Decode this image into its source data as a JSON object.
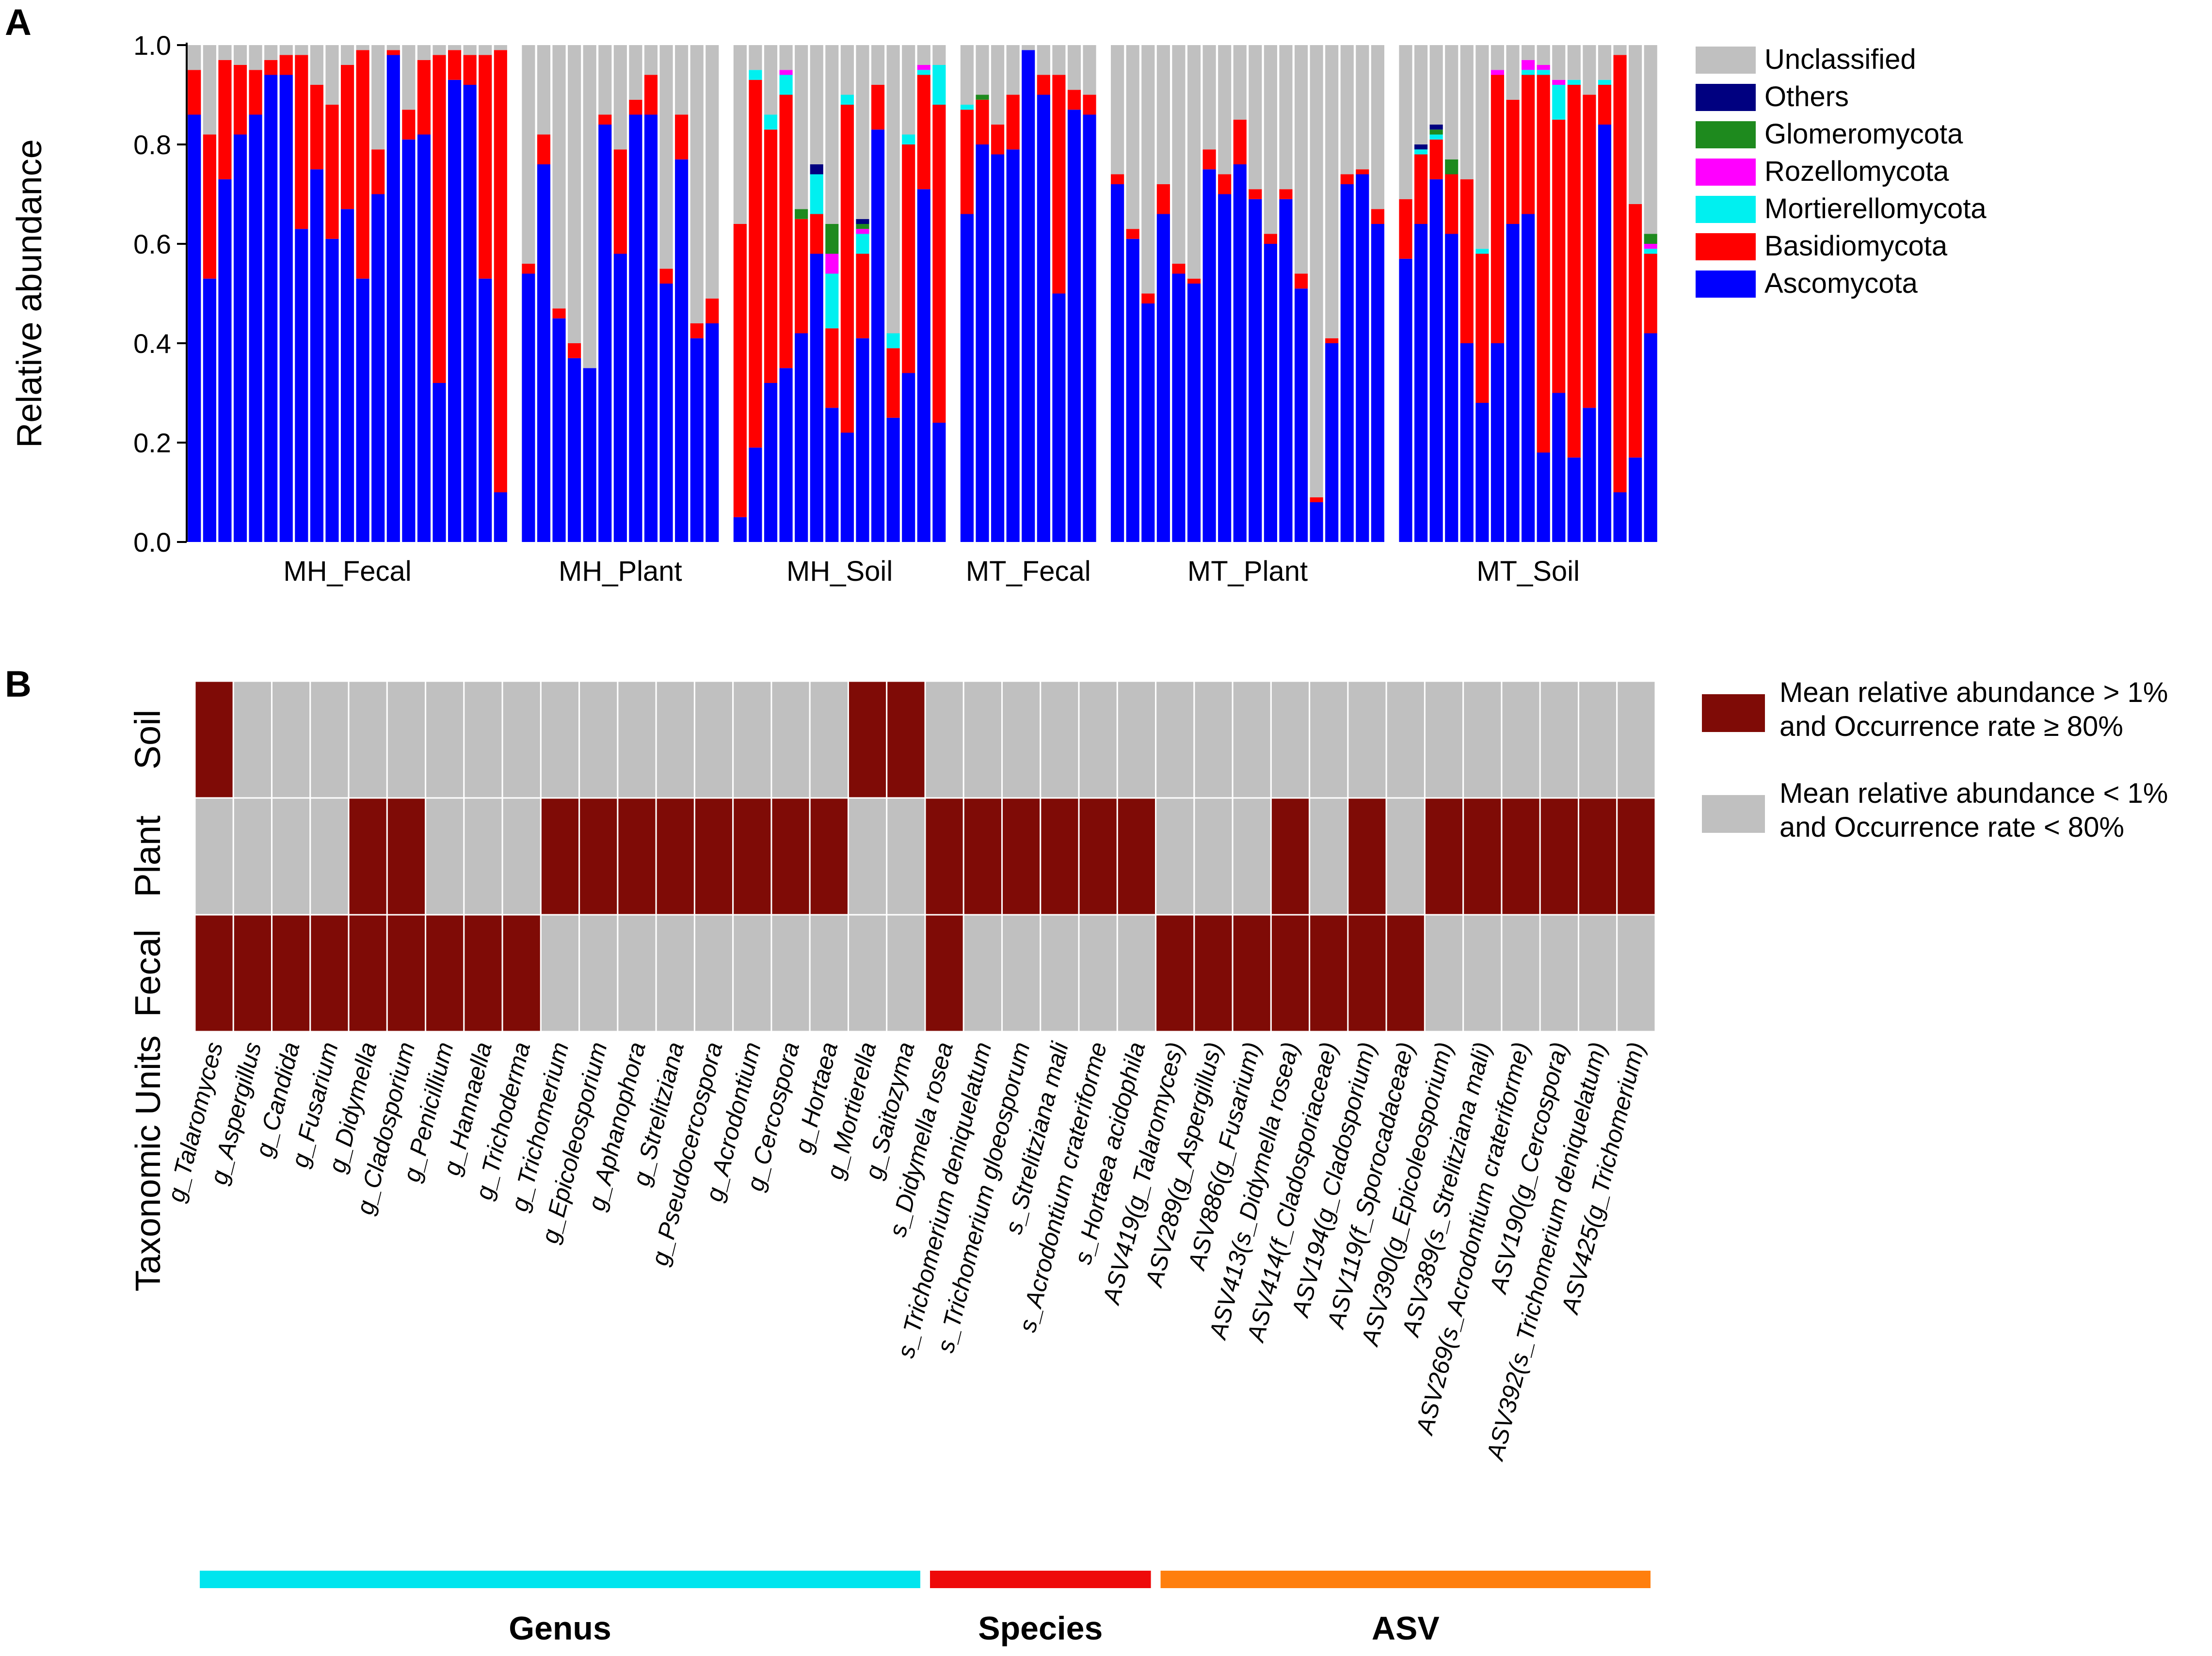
{
  "colors": {
    "Unclassified": "#c0c0c0",
    "Others": "#000080",
    "Glomeromycota": "#1e8a1e",
    "Rozellomycota": "#ff00ff",
    "Mortierellomycota": "#00f0f0",
    "Basidiomycota": "#ff0000",
    "Ascomycota": "#0000ff",
    "present": "#7f0b06",
    "absent": "#c0c0c0",
    "Genus": "#00e5ee",
    "Species": "#ee0a0a",
    "ASV": "#ff7f0e"
  },
  "chart_data": [
    {
      "panel": "A",
      "type": "bar",
      "stacked": true,
      "ylabel": "Relative abundance",
      "ylim": [
        0,
        1.0
      ],
      "yticks": [
        "0.0",
        "0.2",
        "0.4",
        "0.6",
        "0.8",
        "1.0"
      ],
      "legend_position": "right",
      "legend": [
        "Unclassified",
        "Others",
        "Glomeromycota",
        "Rozellomycota",
        "Mortierellomycota",
        "Basidiomycota",
        "Ascomycota"
      ],
      "groups": [
        {
          "name": "MH_Fecal",
          "samples": [
            {
              "Ascomycota": 0.86,
              "Basidiomycota": 0.09
            },
            {
              "Ascomycota": 0.53,
              "Basidiomycota": 0.29
            },
            {
              "Ascomycota": 0.73,
              "Basidiomycota": 0.24
            },
            {
              "Ascomycota": 0.82,
              "Basidiomycota": 0.14
            },
            {
              "Ascomycota": 0.86,
              "Basidiomycota": 0.09
            },
            {
              "Ascomycota": 0.94,
              "Basidiomycota": 0.03
            },
            {
              "Ascomycota": 0.94,
              "Basidiomycota": 0.04
            },
            {
              "Ascomycota": 0.63,
              "Basidiomycota": 0.35
            },
            {
              "Ascomycota": 0.75,
              "Basidiomycota": 0.17
            },
            {
              "Ascomycota": 0.61,
              "Basidiomycota": 0.27
            },
            {
              "Ascomycota": 0.67,
              "Basidiomycota": 0.29
            },
            {
              "Ascomycota": 0.53,
              "Basidiomycota": 0.46
            },
            {
              "Ascomycota": 0.7,
              "Basidiomycota": 0.09
            },
            {
              "Ascomycota": 0.98,
              "Basidiomycota": 0.01
            },
            {
              "Ascomycota": 0.81,
              "Basidiomycota": 0.06
            },
            {
              "Ascomycota": 0.82,
              "Basidiomycota": 0.15
            },
            {
              "Ascomycota": 0.32,
              "Basidiomycota": 0.66
            },
            {
              "Ascomycota": 0.93,
              "Basidiomycota": 0.06
            },
            {
              "Ascomycota": 0.92,
              "Basidiomycota": 0.06
            },
            {
              "Ascomycota": 0.53,
              "Basidiomycota": 0.45
            },
            {
              "Ascomycota": 0.1,
              "Basidiomycota": 0.89
            }
          ]
        },
        {
          "name": "MH_Plant",
          "samples": [
            {
              "Ascomycota": 0.54,
              "Basidiomycota": 0.02
            },
            {
              "Ascomycota": 0.76,
              "Basidiomycota": 0.06
            },
            {
              "Ascomycota": 0.45,
              "Basidiomycota": 0.02
            },
            {
              "Ascomycota": 0.37,
              "Basidiomycota": 0.03
            },
            {
              "Ascomycota": 0.35,
              "Basidiomycota": 0.0
            },
            {
              "Ascomycota": 0.84,
              "Basidiomycota": 0.02
            },
            {
              "Ascomycota": 0.58,
              "Basidiomycota": 0.21
            },
            {
              "Ascomycota": 0.86,
              "Basidiomycota": 0.03
            },
            {
              "Ascomycota": 0.86,
              "Basidiomycota": 0.08
            },
            {
              "Ascomycota": 0.52,
              "Basidiomycota": 0.03
            },
            {
              "Ascomycota": 0.77,
              "Basidiomycota": 0.09
            },
            {
              "Ascomycota": 0.41,
              "Basidiomycota": 0.03
            },
            {
              "Ascomycota": 0.44,
              "Basidiomycota": 0.05
            }
          ]
        },
        {
          "name": "MH_Soil",
          "samples": [
            {
              "Ascomycota": 0.05,
              "Basidiomycota": 0.59
            },
            {
              "Ascomycota": 0.19,
              "Basidiomycota": 0.74,
              "Mortierellomycota": 0.02
            },
            {
              "Ascomycota": 0.32,
              "Basidiomycota": 0.51,
              "Mortierellomycota": 0.03
            },
            {
              "Ascomycota": 0.35,
              "Basidiomycota": 0.55,
              "Mortierellomycota": 0.04,
              "Rozellomycota": 0.01
            },
            {
              "Ascomycota": 0.42,
              "Basidiomycota": 0.23,
              "Glomeromycota": 0.02
            },
            {
              "Ascomycota": 0.58,
              "Basidiomycota": 0.08,
              "Mortierellomycota": 0.08,
              "Others": 0.02
            },
            {
              "Ascomycota": 0.27,
              "Basidiomycota": 0.16,
              "Mortierellomycota": 0.11,
              "Rozellomycota": 0.04,
              "Glomeromycota": 0.06
            },
            {
              "Ascomycota": 0.22,
              "Basidiomycota": 0.66,
              "Mortierellomycota": 0.02
            },
            {
              "Ascomycota": 0.41,
              "Basidiomycota": 0.17,
              "Mortierellomycota": 0.04,
              "Rozellomycota": 0.01,
              "Glomeromycota": 0.01,
              "Others": 0.01
            },
            {
              "Ascomycota": 0.83,
              "Basidiomycota": 0.09
            },
            {
              "Ascomycota": 0.25,
              "Basidiomycota": 0.14,
              "Mortierellomycota": 0.03
            },
            {
              "Ascomycota": 0.34,
              "Basidiomycota": 0.46,
              "Mortierellomycota": 0.02
            },
            {
              "Ascomycota": 0.71,
              "Basidiomycota": 0.23,
              "Mortierellomycota": 0.01,
              "Rozellomycota": 0.01
            },
            {
              "Ascomycota": 0.24,
              "Basidiomycota": 0.64,
              "Mortierellomycota": 0.08
            }
          ]
        },
        {
          "name": "MT_Fecal",
          "samples": [
            {
              "Ascomycota": 0.66,
              "Basidiomycota": 0.21,
              "Mortierellomycota": 0.01
            },
            {
              "Ascomycota": 0.8,
              "Basidiomycota": 0.09,
              "Glomeromycota": 0.01
            },
            {
              "Ascomycota": 0.78,
              "Basidiomycota": 0.06
            },
            {
              "Ascomycota": 0.79,
              "Basidiomycota": 0.11
            },
            {
              "Ascomycota": 0.99,
              "Basidiomycota": 0.0
            },
            {
              "Ascomycota": 0.9,
              "Basidiomycota": 0.04
            },
            {
              "Ascomycota": 0.5,
              "Basidiomycota": 0.44
            },
            {
              "Ascomycota": 0.87,
              "Basidiomycota": 0.04
            },
            {
              "Ascomycota": 0.86,
              "Basidiomycota": 0.04
            }
          ]
        },
        {
          "name": "MT_Plant",
          "samples": [
            {
              "Ascomycota": 0.72,
              "Basidiomycota": 0.02
            },
            {
              "Ascomycota": 0.61,
              "Basidiomycota": 0.02
            },
            {
              "Ascomycota": 0.48,
              "Basidiomycota": 0.02
            },
            {
              "Ascomycota": 0.66,
              "Basidiomycota": 0.06
            },
            {
              "Ascomycota": 0.54,
              "Basidiomycota": 0.02
            },
            {
              "Ascomycota": 0.52,
              "Basidiomycota": 0.01
            },
            {
              "Ascomycota": 0.75,
              "Basidiomycota": 0.04
            },
            {
              "Ascomycota": 0.7,
              "Basidiomycota": 0.04
            },
            {
              "Ascomycota": 0.76,
              "Basidiomycota": 0.09
            },
            {
              "Ascomycota": 0.69,
              "Basidiomycota": 0.02
            },
            {
              "Ascomycota": 0.6,
              "Basidiomycota": 0.02
            },
            {
              "Ascomycota": 0.69,
              "Basidiomycota": 0.02
            },
            {
              "Ascomycota": 0.51,
              "Basidiomycota": 0.03
            },
            {
              "Ascomycota": 0.08,
              "Basidiomycota": 0.01
            },
            {
              "Ascomycota": 0.4,
              "Basidiomycota": 0.01
            },
            {
              "Ascomycota": 0.72,
              "Basidiomycota": 0.02
            },
            {
              "Ascomycota": 0.74,
              "Basidiomycota": 0.01
            },
            {
              "Ascomycota": 0.64,
              "Basidiomycota": 0.03
            }
          ]
        },
        {
          "name": "MT_Soil",
          "samples": [
            {
              "Ascomycota": 0.57,
              "Basidiomycota": 0.12
            },
            {
              "Ascomycota": 0.64,
              "Basidiomycota": 0.14,
              "Mortierellomycota": 0.01,
              "Others": 0.01
            },
            {
              "Ascomycota": 0.73,
              "Basidiomycota": 0.08,
              "Mortierellomycota": 0.01,
              "Glomeromycota": 0.01,
              "Others": 0.01
            },
            {
              "Ascomycota": 0.62,
              "Basidiomycota": 0.12,
              "Glomeromycota": 0.03
            },
            {
              "Ascomycota": 0.4,
              "Basidiomycota": 0.33
            },
            {
              "Ascomycota": 0.28,
              "Basidiomycota": 0.3,
              "Mortierellomycota": 0.01
            },
            {
              "Ascomycota": 0.4,
              "Basidiomycota": 0.54,
              "Rozellomycota": 0.01
            },
            {
              "Ascomycota": 0.64,
              "Basidiomycota": 0.25
            },
            {
              "Ascomycota": 0.66,
              "Basidiomycota": 0.28,
              "Mortierellomycota": 0.01,
              "Rozellomycota": 0.02
            },
            {
              "Ascomycota": 0.18,
              "Basidiomycota": 0.76,
              "Mortierellomycota": 0.01,
              "Rozellomycota": 0.01
            },
            {
              "Ascomycota": 0.3,
              "Basidiomycota": 0.55,
              "Mortierellomycota": 0.07,
              "Rozellomycota": 0.01
            },
            {
              "Ascomycota": 0.17,
              "Basidiomycota": 0.75,
              "Mortierellomycota": 0.01
            },
            {
              "Ascomycota": 0.27,
              "Basidiomycota": 0.63
            },
            {
              "Ascomycota": 0.84,
              "Basidiomycota": 0.08,
              "Mortierellomycota": 0.01
            },
            {
              "Ascomycota": 0.1,
              "Basidiomycota": 0.88
            },
            {
              "Ascomycota": 0.17,
              "Basidiomycota": 0.51
            },
            {
              "Ascomycota": 0.42,
              "Basidiomycota": 0.16,
              "Mortierellomycota": 0.01,
              "Rozellomycota": 0.01,
              "Glomeromycota": 0.02
            }
          ]
        }
      ]
    },
    {
      "panel": "B",
      "type": "heatmap",
      "ylabel": "Taxonomic Units",
      "rows": [
        "Soil",
        "Plant",
        "Fecal"
      ],
      "columns": [
        "g_Talaromyces",
        "g_Aspergillus",
        "g_Candida",
        "g_Fusarium",
        "g_Didymella",
        "g_Cladosporium",
        "g_Penicillium",
        "g_Hannaella",
        "g_Trichoderma",
        "g_Trichomerium",
        "g_Epicoleosporium",
        "g_Aphanophora",
        "g_Strelitziana",
        "g_Pseudocercospora",
        "g_Acrodontium",
        "g_Cercospora",
        "g_Hortaea",
        "g_Mortierella",
        "g_Saitozyma",
        "s_Didymella rosea",
        "s_Trichomerium deniquelatum",
        "s_Trichomerium gloeosporum",
        "s_Strelitziana mali",
        "s_Acrodontium crateriforme",
        "s_Hortaea acidophila",
        "ASV419(g_Talaromyces)",
        "ASV289(g_Aspergillus)",
        "ASV886(g_Fusarium)",
        "ASV413(s_Didymella rosea)",
        "ASV414(f_Cladosporiaceae)",
        "ASV194(g_Cladosporium)",
        "ASV119(f_Sporocadaceae)",
        "ASV390(g_Epicoleosporium)",
        "ASV389(s_Strelitziana mali)",
        "ASV269(s_Acrodontium crateriforme)",
        "ASV190(g_Cercospora)",
        "ASV392(s_Trichomerium deniquelatum)",
        "ASV425(g_Trichomerium)"
      ],
      "values": [
        [
          1,
          0,
          0,
          0,
          0,
          0,
          0,
          0,
          0,
          0,
          0,
          0,
          0,
          0,
          0,
          0,
          0,
          1,
          1,
          0,
          0,
          0,
          0,
          0,
          0,
          0,
          0,
          0,
          0,
          0,
          0,
          0,
          0,
          0,
          0,
          0,
          0,
          0
        ],
        [
          0,
          0,
          0,
          0,
          1,
          1,
          0,
          0,
          0,
          1,
          1,
          1,
          1,
          1,
          1,
          1,
          1,
          0,
          0,
          1,
          1,
          1,
          1,
          1,
          1,
          0,
          0,
          0,
          1,
          0,
          1,
          0,
          1,
          1,
          1,
          1,
          1,
          1
        ],
        [
          1,
          1,
          1,
          1,
          1,
          1,
          1,
          1,
          1,
          0,
          0,
          0,
          0,
          0,
          0,
          0,
          0,
          0,
          0,
          1,
          0,
          0,
          0,
          0,
          0,
          1,
          1,
          1,
          1,
          1,
          1,
          1,
          0,
          0,
          0,
          0,
          0,
          0
        ]
      ],
      "categories": [
        {
          "name": "Genus",
          "count": 19
        },
        {
          "name": "Species",
          "count": 6
        },
        {
          "name": "ASV",
          "count": 13
        }
      ],
      "legend": [
        {
          "key": "present",
          "lines": [
            "Mean relative abundance  > 1%",
            "and Occurrence rate ≥ 80%"
          ]
        },
        {
          "key": "absent",
          "lines": [
            "Mean relative abundance  < 1%",
            "and Occurrence rate < 80%"
          ]
        }
      ]
    }
  ]
}
